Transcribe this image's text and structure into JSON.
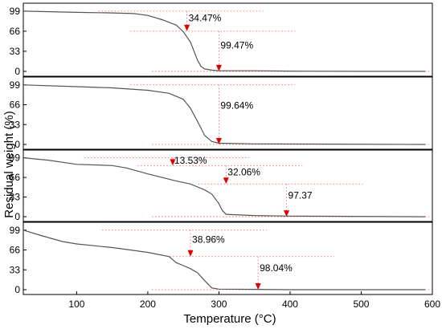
{
  "figure": {
    "ylabel": "Residual weight (%)",
    "xlabel": "Temperature (°C)"
  },
  "chart_data": {
    "type": "line",
    "layout": "four stacked panels sharing one x axis",
    "xlabel": "Temperature (°C)",
    "ylabel": "Residual weight (%)",
    "xlim": [
      25,
      600
    ],
    "xticks": [
      100,
      200,
      300,
      400,
      500,
      600
    ],
    "ylim": [
      -8,
      112
    ],
    "yticks": [
      0,
      33,
      66,
      99
    ],
    "grid": false,
    "colors": {
      "curve": "#555555",
      "guide": "#ff5050",
      "marker": "#e00000"
    },
    "panels": [
      {
        "x": [
          25,
          100,
          150,
          180,
          200,
          220,
          240,
          250,
          260,
          270,
          275,
          280,
          290,
          300,
          350,
          400,
          500,
          590
        ],
        "y": [
          99,
          97,
          96,
          95,
          92,
          85,
          76,
          65,
          48,
          18,
          8,
          4,
          2,
          1,
          1,
          0.5,
          0,
          0
        ],
        "annotations": [
          {
            "label": "34.47%",
            "x": 255,
            "y_arrow": 66,
            "y_top": 99
          },
          {
            "label": "99.47%",
            "x": 300,
            "y_arrow": 0,
            "y_top": 66
          }
        ]
      },
      {
        "x": [
          25,
          100,
          150,
          200,
          230,
          250,
          260,
          270,
          280,
          290,
          300,
          350,
          590
        ],
        "y": [
          99,
          96,
          94,
          90,
          85,
          75,
          60,
          38,
          15,
          5,
          2,
          1,
          0
        ],
        "annotations": [
          {
            "label": "99.64%",
            "x": 300,
            "y_arrow": 0,
            "y_top": 99
          }
        ]
      },
      {
        "x": [
          25,
          60,
          100,
          150,
          170,
          200,
          240,
          260,
          270,
          280,
          290,
          300,
          305,
          310,
          350,
          400,
          590
        ],
        "y": [
          99,
          95,
          88,
          86,
          82,
          72,
          60,
          55,
          50,
          45,
          38,
          22,
          10,
          4,
          2,
          1,
          0
        ],
        "annotations": [
          {
            "label": "13.53%",
            "x": 235,
            "y_arrow": 86,
            "y_top": 99
          },
          {
            "label": "32.06%",
            "x": 310,
            "y_arrow": 55,
            "y_top": 86
          },
          {
            "label": "97.37",
            "x": 395,
            "y_arrow": 0,
            "y_top": 55
          }
        ]
      },
      {
        "x": [
          25,
          50,
          80,
          100,
          150,
          200,
          230,
          240,
          250,
          260,
          270,
          280,
          290,
          300,
          350,
          400,
          590
        ],
        "y": [
          99,
          90,
          80,
          76,
          70,
          62,
          55,
          45,
          40,
          35,
          28,
          15,
          3,
          1,
          0.5,
          0,
          0
        ],
        "annotations": [
          {
            "label": "38.96%",
            "x": 260,
            "y_arrow": 55,
            "y_top": 99
          },
          {
            "label": "98.04%",
            "x": 355,
            "y_arrow": 0,
            "y_top": 55
          }
        ]
      }
    ]
  }
}
